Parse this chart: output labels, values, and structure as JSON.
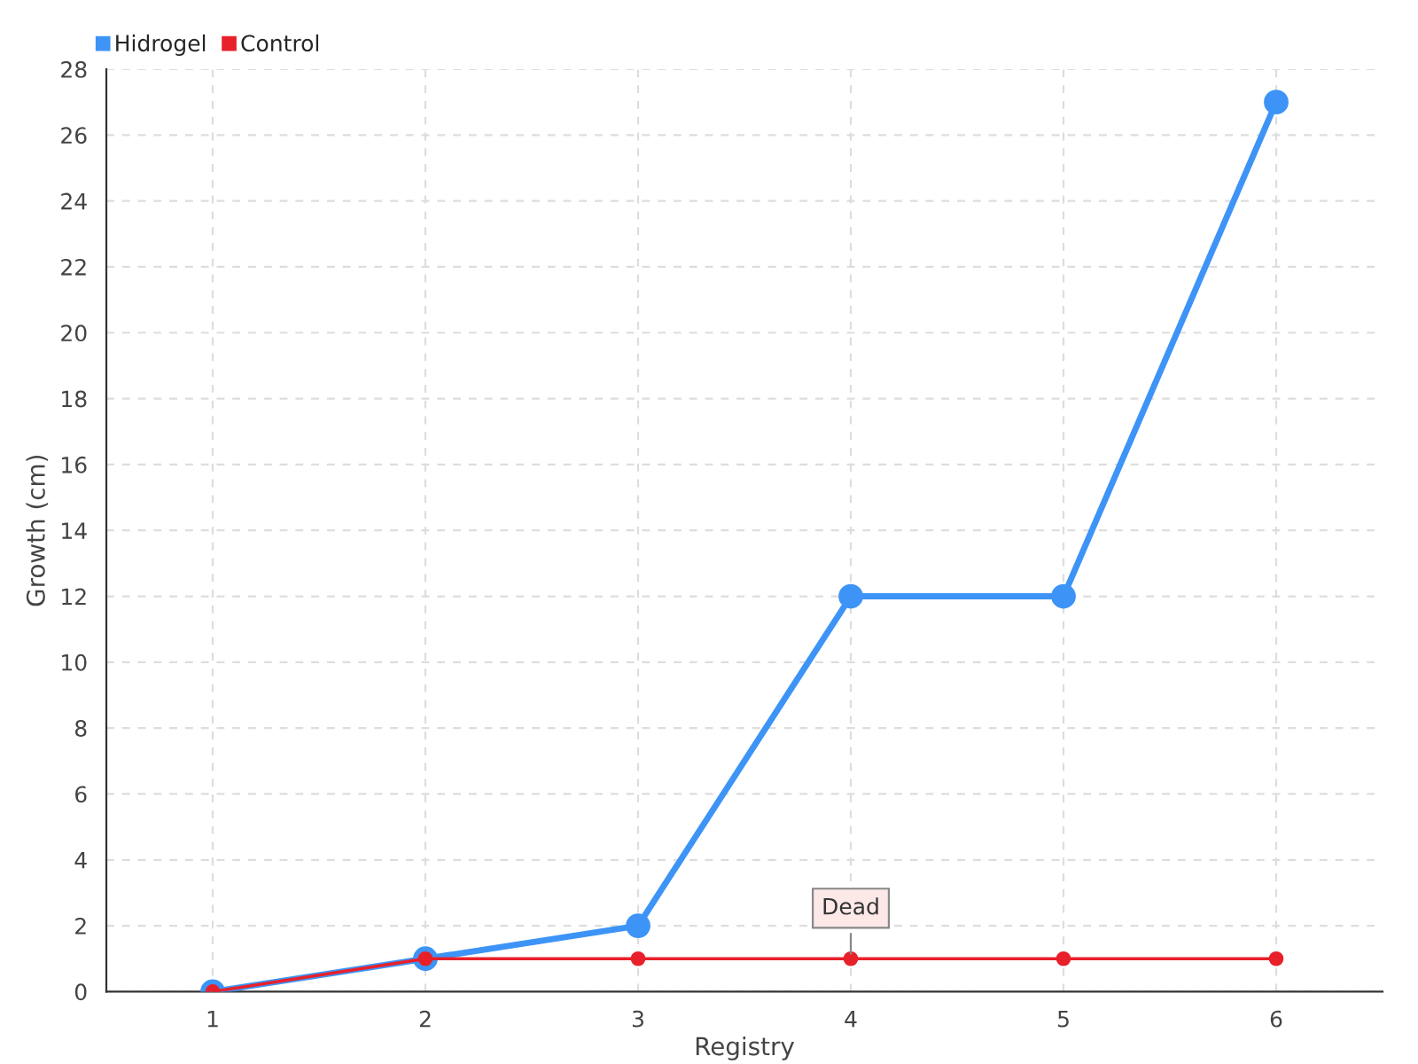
{
  "chart_data": {
    "type": "line",
    "xlabel": "Registry",
    "ylabel": "Growth (cm)",
    "categories": [
      "1",
      "2",
      "3",
      "4",
      "5",
      "6"
    ],
    "series": [
      {
        "name": "Hidrogel",
        "color": "#3d94f6",
        "values": [
          0,
          1,
          2,
          12,
          12,
          27
        ]
      },
      {
        "name": "Control",
        "color": "#e8202a",
        "values": [
          0,
          1,
          1,
          1,
          1,
          1
        ]
      }
    ],
    "ylim": [
      0,
      28
    ],
    "yticks": [
      0,
      2,
      4,
      6,
      8,
      10,
      12,
      14,
      16,
      18,
      20,
      22,
      24,
      26,
      28
    ],
    "annotations": [
      {
        "text": "Dead",
        "x": "4",
        "y": 1
      }
    ],
    "grid": true,
    "legend": "top left",
    "marker": "circle",
    "line_style": "solid"
  }
}
